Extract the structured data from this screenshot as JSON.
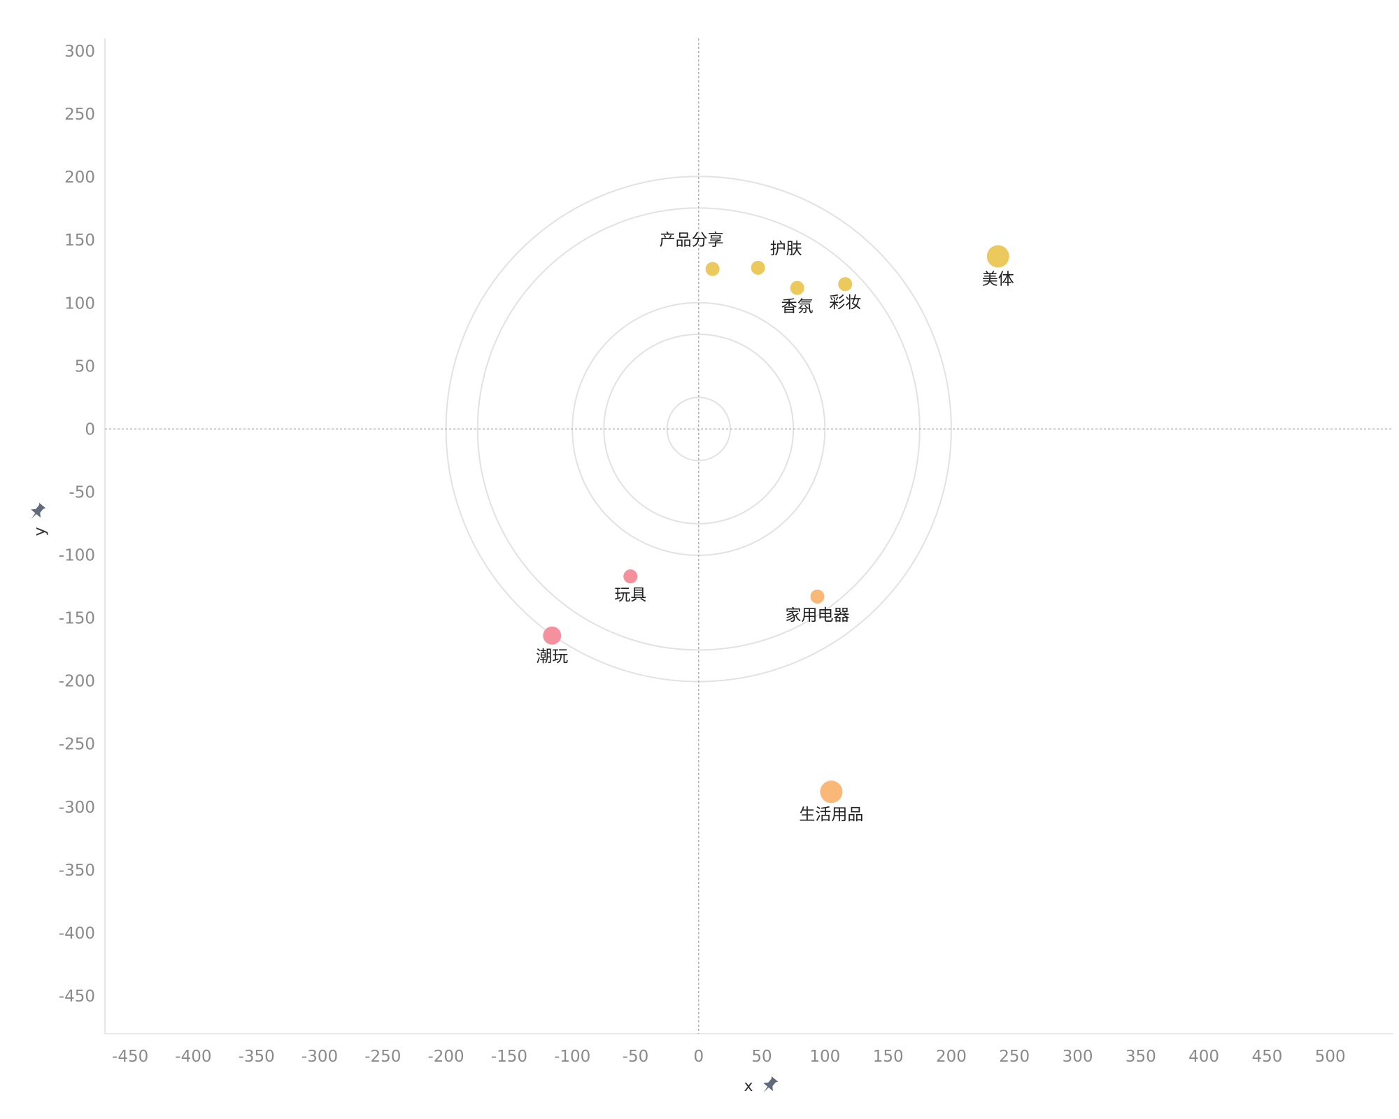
{
  "chart_data": {
    "type": "scatter",
    "xlabel": "x",
    "ylabel": "y",
    "xlim": [
      -470,
      550
    ],
    "ylim": [
      -480,
      310
    ],
    "xticks": [
      -450,
      -400,
      -350,
      -300,
      -250,
      -200,
      -150,
      -100,
      -50,
      0,
      50,
      100,
      150,
      200,
      250,
      300,
      350,
      400,
      450,
      500
    ],
    "yticks": [
      300,
      250,
      200,
      150,
      100,
      50,
      0,
      -50,
      -100,
      -150,
      -200,
      -250,
      -300,
      -350,
      -400,
      -450
    ],
    "grid": false,
    "reference_lines": {
      "x": 0,
      "y": 0,
      "style": "dashed"
    },
    "rings": [
      25,
      75,
      100,
      175,
      200
    ],
    "points": [
      {
        "label": "产品分享",
        "x": 11,
        "y": 127,
        "size": "small",
        "color": "#ebc95c",
        "label_pos": "top-left"
      },
      {
        "label": "护肤",
        "x": 47,
        "y": 128,
        "size": "small",
        "color": "#ebc95c",
        "label_pos": "top-right"
      },
      {
        "label": "香氛",
        "x": 78,
        "y": 112,
        "size": "small",
        "color": "#ebc95c",
        "label_pos": "bottom"
      },
      {
        "label": "彩妆",
        "x": 116,
        "y": 115,
        "size": "small",
        "color": "#ebc95c",
        "label_pos": "bottom"
      },
      {
        "label": "美体",
        "x": 237,
        "y": 137,
        "size": "large",
        "color": "#ebc95c",
        "label_pos": "bottom"
      },
      {
        "label": "玩具",
        "x": -54,
        "y": -117,
        "size": "small",
        "color": "#f5919d",
        "label_pos": "bottom"
      },
      {
        "label": "潮玩",
        "x": -116,
        "y": -164,
        "size": "medium",
        "color": "#f5919d",
        "label_pos": "bottom"
      },
      {
        "label": "家用电器",
        "x": 94,
        "y": -133,
        "size": "small",
        "color": "#f9b778",
        "label_pos": "bottom"
      },
      {
        "label": "生活用品",
        "x": 105,
        "y": -288,
        "size": "large",
        "color": "#f9b778",
        "label_pos": "bottom"
      }
    ]
  },
  "icons": {
    "x_axis": "pin-icon",
    "y_axis": "pin-icon"
  },
  "colors": {
    "axis_line": "#e6e6e6",
    "ring": "#e2e2e2",
    "reference": "#b0b0b0",
    "pin": "#5f6b7a"
  }
}
